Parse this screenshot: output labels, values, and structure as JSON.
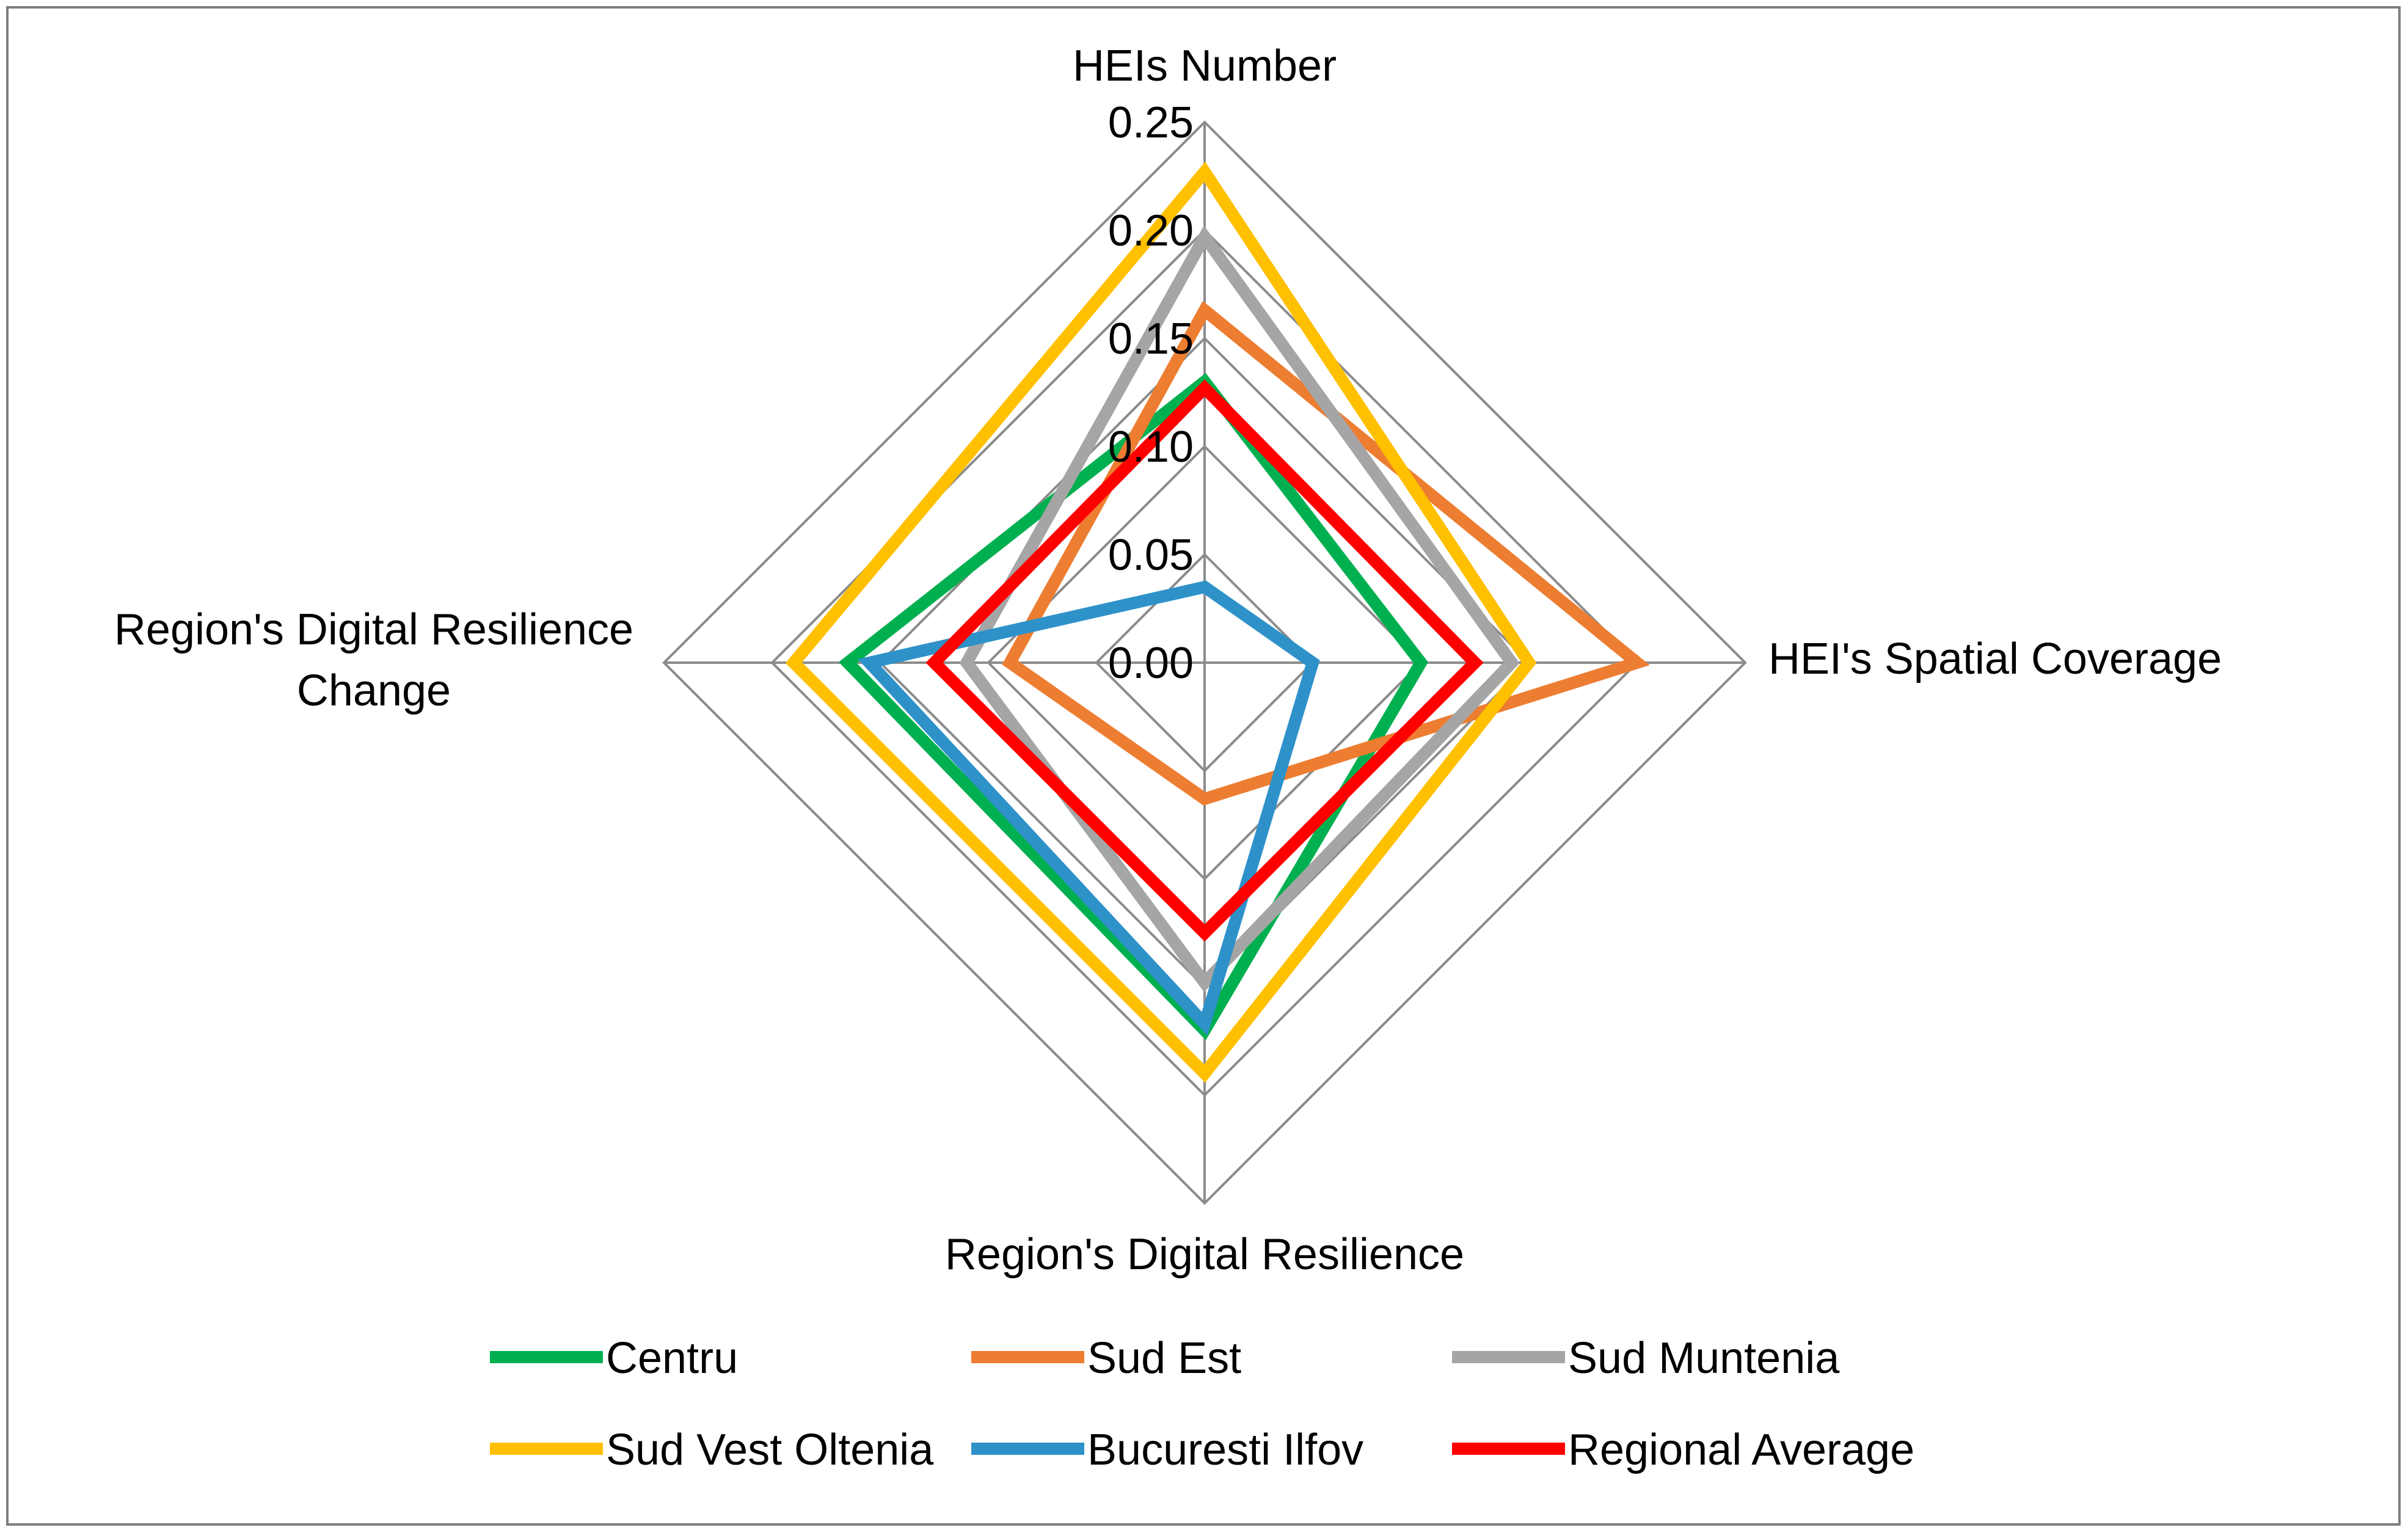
{
  "chart_data": {
    "type": "radar",
    "title": "",
    "axes": [
      "HEIs Number",
      "HEI's Spatial Coverage",
      "Region's Digital Resilience",
      "Region's Digital Resilience Change"
    ],
    "axis_label_lines": [
      [
        "HEIs Number"
      ],
      [
        "HEI's Spatial Coverage"
      ],
      [
        "Region's Digital Resilience"
      ],
      [
        "Region's Digital Resilience",
        "Change"
      ]
    ],
    "range": [
      0,
      0.25
    ],
    "ticks": [
      0,
      0.05,
      0.1,
      0.15,
      0.2,
      0.25
    ],
    "tick_labels": [
      "0.00",
      "0.05",
      "0.10",
      "0.15",
      "0.20",
      "0.25"
    ],
    "grid": true,
    "legend_position": "bottom",
    "series": [
      {
        "name": "Centru",
        "color": "#00b050",
        "values": [
          0.13,
          0.1,
          0.17,
          0.165
        ]
      },
      {
        "name": "Sud Est",
        "color": "#ed7d31",
        "values": [
          0.163,
          0.2,
          0.063,
          0.09
        ]
      },
      {
        "name": "Sud Muntenia",
        "color": "#a5a5a5",
        "values": [
          0.197,
          0.142,
          0.148,
          0.11
        ]
      },
      {
        "name": "Sud Vest Oltenia",
        "color": "#ffc000",
        "values": [
          0.227,
          0.15,
          0.19,
          0.19
        ]
      },
      {
        "name": "Bucuresti Ilfov",
        "color": "#2e92c9",
        "values": [
          0.035,
          0.05,
          0.167,
          0.155
        ]
      },
      {
        "name": "Regional Average",
        "color": "#ff0000",
        "values": [
          0.127,
          0.125,
          0.125,
          0.125
        ]
      }
    ]
  }
}
